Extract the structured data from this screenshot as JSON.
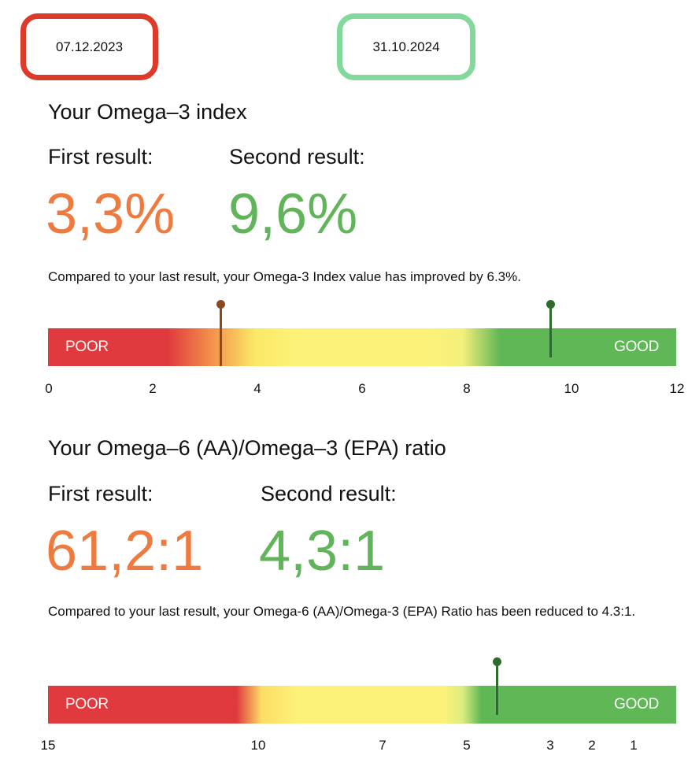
{
  "dates": {
    "first": "07.12.2023",
    "second": "31.10.2024"
  },
  "colors": {
    "first_badge": "#de3a2a",
    "second_badge": "#83d89b",
    "first_value": "#ee7a40",
    "second_value": "#61b45a",
    "poor": "#e0393e",
    "mid": "#fdf279",
    "good": "#5fb755"
  },
  "omega3": {
    "title": "Your Omega–3 index",
    "first_label": "First result:",
    "second_label": "Second result:",
    "first_value": "3,3%",
    "second_value": "9,6%",
    "note": "Compared to your last result, your Omega-3 Index value has improved by 6.3%.",
    "scale": {
      "poor_label": "POOR",
      "good_label": "GOOD",
      "ticks": [
        "0",
        "2",
        "4",
        "6",
        "8",
        "10",
        "12"
      ],
      "min": 0,
      "max": 12,
      "first_marker": 3.3,
      "second_marker": 9.6
    }
  },
  "ratio": {
    "title": "Your Omega–6 (AA)/Omega–3 (EPA) ratio",
    "first_label": "First result:",
    "second_label": "Second result:",
    "first_value": "61,2:1",
    "second_value": "4,3:1",
    "note": "Compared to your last result, your Omega-6 (AA)/Omega-3 (EPA) Ratio has been reduced to 4.3:1.",
    "scale": {
      "poor_label": "POOR",
      "good_label": "GOOD",
      "ticks": [
        "15",
        "10",
        "7",
        "5",
        "3",
        "2",
        "1"
      ],
      "second_marker": 4.3
    }
  }
}
